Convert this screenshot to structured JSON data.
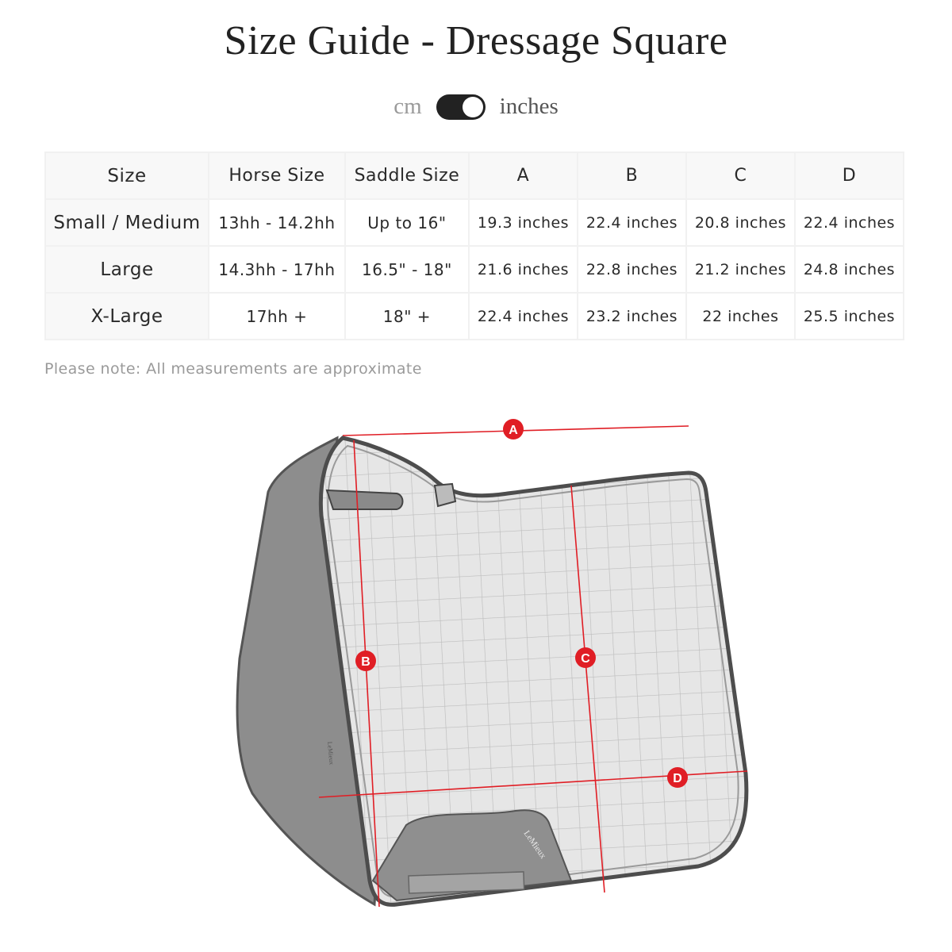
{
  "header": {
    "title": "Size Guide - Dressage Square"
  },
  "unit_toggle": {
    "left_label": "cm",
    "right_label": "inches",
    "selected": "inches"
  },
  "table": {
    "columns": [
      "Size",
      "Horse Size",
      "Saddle Size",
      "A",
      "B",
      "C",
      "D"
    ],
    "rows": [
      [
        "Small / Medium",
        "13hh - 14.2hh",
        "Up to 16\"",
        "19.3 inches",
        "22.4 inches",
        "20.8 inches",
        "22.4 inches"
      ],
      [
        "Large",
        "14.3hh - 17hh",
        "16.5\" - 18\"",
        "21.6 inches",
        "22.8 inches",
        "21.2 inches",
        "24.8 inches"
      ],
      [
        "X-Large",
        "17hh +",
        "18\" +",
        "22.4 inches",
        "23.2 inches",
        "22 inches",
        "25.5 inches"
      ]
    ]
  },
  "note": "Please note: All measurements are approximate",
  "diagram": {
    "markers": [
      "A",
      "B",
      "C",
      "D"
    ],
    "logo_text": "LeMieux",
    "colors": {
      "marker": "#e01e25",
      "pad": "#e4e4e4",
      "panel": "#8a8a8a",
      "outline": "#555555"
    }
  }
}
